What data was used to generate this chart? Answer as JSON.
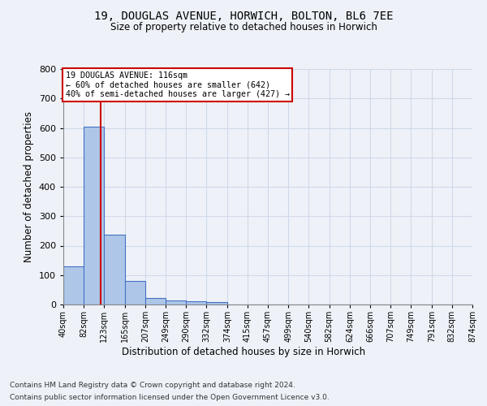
{
  "title": "19, DOUGLAS AVENUE, HORWICH, BOLTON, BL6 7EE",
  "subtitle": "Size of property relative to detached houses in Horwich",
  "xlabel": "Distribution of detached houses by size in Horwich",
  "ylabel": "Number of detached properties",
  "footer_line1": "Contains HM Land Registry data © Crown copyright and database right 2024.",
  "footer_line2": "Contains public sector information licensed under the Open Government Licence v3.0.",
  "bar_edges": [
    40,
    82,
    123,
    165,
    207,
    249,
    290,
    332,
    374,
    415,
    457,
    499,
    540,
    582,
    624,
    666,
    707,
    749,
    791,
    832,
    874
  ],
  "bar_heights": [
    130,
    605,
    238,
    80,
    22,
    13,
    10,
    8,
    0,
    0,
    0,
    0,
    0,
    0,
    0,
    0,
    0,
    0,
    0,
    0
  ],
  "bar_color": "#aec6e8",
  "bar_edge_color": "#4472c4",
  "grid_color": "#d0d8e8",
  "property_line_x": 116,
  "property_line_color": "#cc0000",
  "annotation_text": "19 DOUGLAS AVENUE: 116sqm\n← 60% of detached houses are smaller (642)\n40% of semi-detached houses are larger (427) →",
  "annotation_box_color": "#ffffff",
  "annotation_box_edge_color": "#cc0000",
  "ylim": [
    0,
    800
  ],
  "yticks": [
    0,
    100,
    200,
    300,
    400,
    500,
    600,
    700,
    800
  ],
  "xtick_labels": [
    "40sqm",
    "82sqm",
    "123sqm",
    "165sqm",
    "207sqm",
    "249sqm",
    "290sqm",
    "332sqm",
    "374sqm",
    "415sqm",
    "457sqm",
    "499sqm",
    "540sqm",
    "582sqm",
    "624sqm",
    "666sqm",
    "707sqm",
    "749sqm",
    "791sqm",
    "832sqm",
    "874sqm"
  ],
  "bg_color": "#eef2f8",
  "plot_bg_color": "#eef2f8"
}
